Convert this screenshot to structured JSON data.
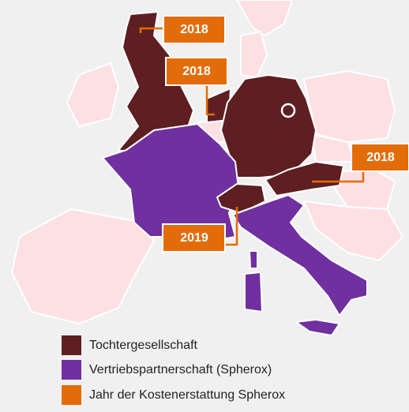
{
  "year_labels": [
    "2018",
    "2018",
    "2018",
    "2019"
  ],
  "legend": [
    "Tochtergesellschaft",
    "Vertriebspartnerschaft (Spherox)",
    "Jahr der Kostenerstattung Spherox"
  ]
}
